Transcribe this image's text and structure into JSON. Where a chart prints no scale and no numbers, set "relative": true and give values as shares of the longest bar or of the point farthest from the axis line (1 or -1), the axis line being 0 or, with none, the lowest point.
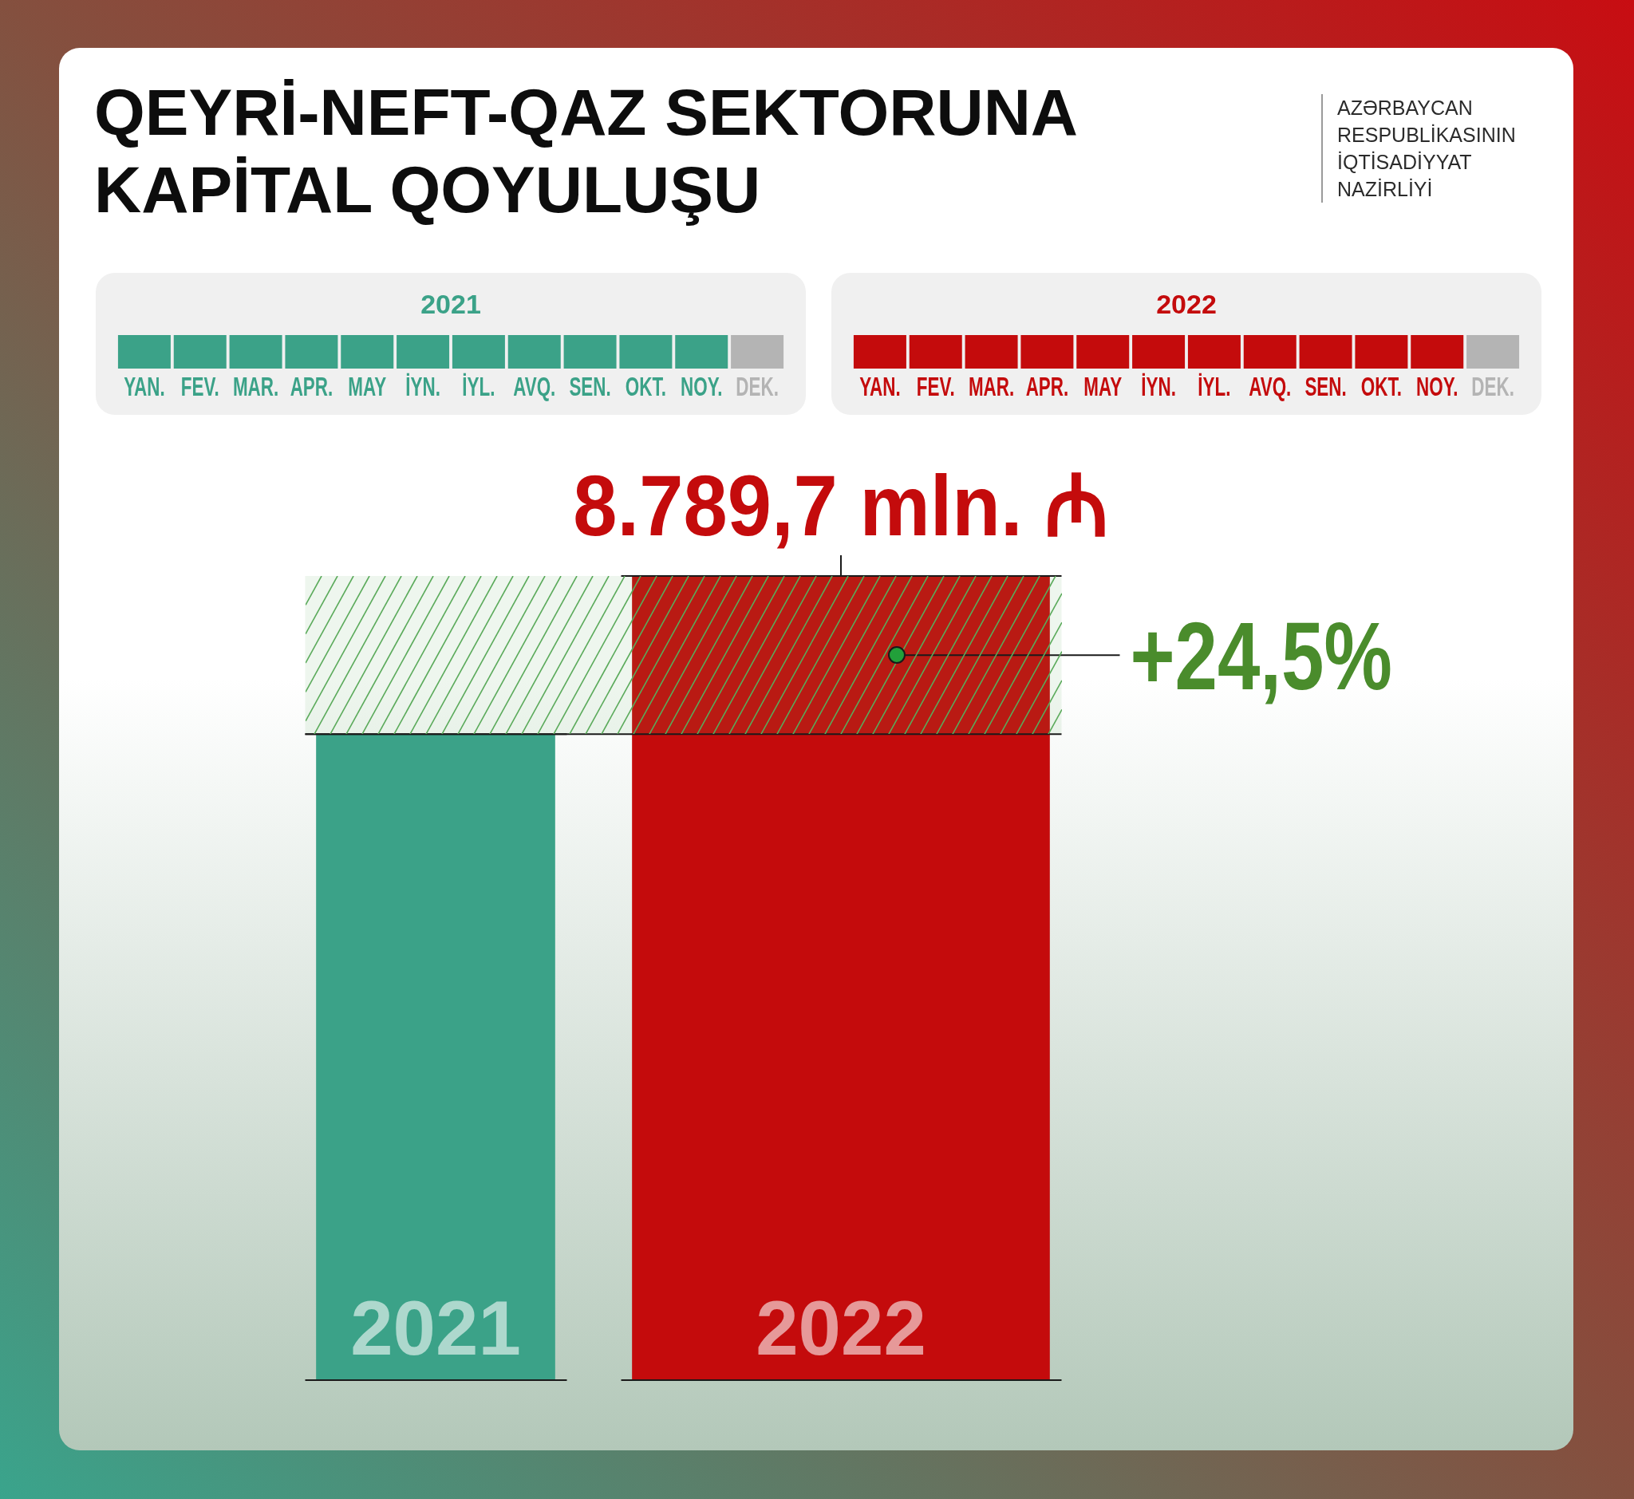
{
  "chart_data": [
    {
      "type": "other",
      "title": "QEYRİ-NEFT-QAZ SEKTORUNA KAPİTAL QOYULUŞU",
      "annotations": [
        "AZƏRBAYCAN RESPUBLİKASININ İQTİSADİYYAT NAZİRLİYİ"
      ]
    },
    {
      "type": "bar",
      "relative": true,
      "title": "2021",
      "categories": [
        "YAN.",
        "FEV.",
        "MAR.",
        "APR.",
        "MAY",
        "İYN.",
        "İYL.",
        "AVQ.",
        "SEN.",
        "OKT.",
        "NOY.",
        "DEK."
      ],
      "values": [
        1,
        1,
        1,
        1,
        1,
        1,
        1,
        1,
        1,
        1,
        1,
        1
      ],
      "colors": [
        "#3ba288",
        "#3ba288",
        "#3ba288",
        "#3ba288",
        "#3ba288",
        "#3ba288",
        "#3ba288",
        "#3ba288",
        "#3ba288",
        "#3ba288",
        "#3ba288",
        "#b4b4b4"
      ],
      "tick_labels": "x"
    },
    {
      "type": "bar",
      "relative": true,
      "title": "2022",
      "categories": [
        "YAN.",
        "FEV.",
        "MAR.",
        "APR.",
        "MAY",
        "İYN.",
        "İYL.",
        "AVQ.",
        "SEN.",
        "OKT.",
        "NOY.",
        "DEK."
      ],
      "values": [
        1,
        1,
        1,
        1,
        1,
        1,
        1,
        1,
        1,
        1,
        1,
        1
      ],
      "colors": [
        "#c40b0c",
        "#c40b0c",
        "#c40b0c",
        "#c40b0c",
        "#c40b0c",
        "#c40b0c",
        "#c40b0c",
        "#c40b0c",
        "#c40b0c",
        "#c40b0c",
        "#c40b0c",
        "#b4b4b4"
      ],
      "tick_labels": "x"
    },
    {
      "type": "bar",
      "categories": [
        "2021",
        "2022"
      ],
      "values": [
        7060,
        8789.7
      ],
      "colors": [
        "#3ba288",
        "#c40b0c"
      ],
      "value_labels": [
        null,
        "8.789,7 mln. ₼"
      ],
      "bands": [
        {
          "axis": "y",
          "from": 7060,
          "to": 8789.7,
          "color": "#5aaa5a"
        }
      ],
      "ref_lines": [
        {
          "axis": "y",
          "value": 7060
        }
      ],
      "annotations": [
        "+24,5%"
      ],
      "tick_labels": "x"
    }
  ]
}
